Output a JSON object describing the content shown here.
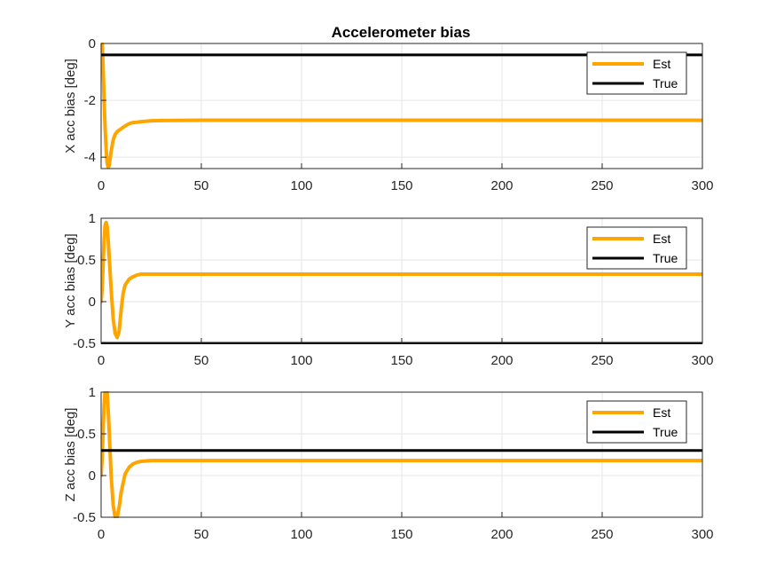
{
  "figure": {
    "title": "Accelerometer bias",
    "colors": {
      "est": "#FFA500",
      "true": "#000000",
      "grid": "#E6E6E6",
      "axis": "#262626"
    }
  },
  "chart_data": [
    {
      "type": "line",
      "title": "Accelerometer bias",
      "xlabel": "",
      "ylabel": "X acc bias [deg]",
      "xlim": [
        0,
        300
      ],
      "ylim": [
        -4.4,
        0
      ],
      "xticks": [
        0,
        50,
        100,
        150,
        200,
        250,
        300
      ],
      "yticks": [
        0,
        -2,
        -4
      ],
      "grid": true,
      "legend": {
        "placement": "top-right",
        "entries": [
          "Est",
          "True"
        ]
      },
      "series": [
        {
          "name": "Est",
          "color": "#FFA500",
          "x": [
            0,
            0.5,
            1,
            1.5,
            2,
            2.5,
            3,
            3.5,
            4,
            5,
            6,
            7,
            8,
            10,
            12,
            14,
            16,
            18,
            20,
            25,
            30,
            50,
            100,
            150,
            200,
            250,
            300
          ],
          "y": [
            -0.2,
            0.0,
            -0.8,
            -2.0,
            -3.0,
            -3.7,
            -4.2,
            -4.35,
            -4.3,
            -3.8,
            -3.4,
            -3.2,
            -3.1,
            -3.0,
            -2.9,
            -2.82,
            -2.78,
            -2.77,
            -2.75,
            -2.72,
            -2.71,
            -2.7,
            -2.7,
            -2.7,
            -2.7,
            -2.7,
            -2.7
          ]
        },
        {
          "name": "True",
          "color": "#000000",
          "x": [
            0,
            300
          ],
          "y": [
            -0.4,
            -0.4
          ]
        }
      ]
    },
    {
      "type": "line",
      "title": "",
      "xlabel": "",
      "ylabel": "Y acc bias [deg]",
      "xlim": [
        0,
        300
      ],
      "ylim": [
        -0.5,
        1
      ],
      "xticks": [
        0,
        50,
        100,
        150,
        200,
        250,
        300
      ],
      "yticks": [
        1,
        0.5,
        0,
        -0.5
      ],
      "grid": true,
      "legend": {
        "placement": "top-right",
        "entries": [
          "Est",
          "True"
        ]
      },
      "series": [
        {
          "name": "Est",
          "color": "#FFA500",
          "x": [
            0,
            0.5,
            1,
            1.5,
            2,
            2.5,
            3,
            3.5,
            4,
            5,
            6,
            7,
            8,
            9,
            10,
            11,
            12,
            14,
            16,
            18,
            20,
            25,
            30,
            50,
            100,
            150,
            200,
            250,
            300
          ],
          "y": [
            0.0,
            0.15,
            0.45,
            0.75,
            0.92,
            0.95,
            0.9,
            0.75,
            0.55,
            0.15,
            -0.2,
            -0.38,
            -0.43,
            -0.35,
            -0.1,
            0.1,
            0.2,
            0.27,
            0.3,
            0.32,
            0.33,
            0.33,
            0.33,
            0.33,
            0.33,
            0.33,
            0.33,
            0.33,
            0.33
          ]
        },
        {
          "name": "True",
          "color": "#000000",
          "x": [
            0,
            300
          ],
          "y": [
            -0.5,
            -0.5
          ]
        }
      ]
    },
    {
      "type": "line",
      "title": "",
      "xlabel": "",
      "ylabel": "Z acc bias [deg]",
      "xlim": [
        0,
        300
      ],
      "ylim": [
        -0.5,
        1
      ],
      "xticks": [
        0,
        50,
        100,
        150,
        200,
        250,
        300
      ],
      "yticks": [
        1,
        0.5,
        0,
        -0.5
      ],
      "grid": true,
      "legend": {
        "placement": "top-right",
        "entries": [
          "Est",
          "True"
        ]
      },
      "series": [
        {
          "name": "Est",
          "color": "#FFA500",
          "x": [
            0,
            0.5,
            1,
            1.5,
            2,
            2.5,
            3,
            3.5,
            4,
            5,
            6,
            7,
            8,
            9,
            10,
            12,
            14,
            16,
            18,
            20,
            25,
            30,
            50,
            100,
            150,
            200,
            250,
            300
          ],
          "y": [
            0.0,
            0.2,
            0.55,
            0.85,
            1.02,
            1.05,
            1.0,
            0.8,
            0.55,
            0.0,
            -0.35,
            -0.5,
            -0.5,
            -0.38,
            -0.2,
            0.02,
            0.1,
            0.14,
            0.16,
            0.17,
            0.18,
            0.18,
            0.18,
            0.18,
            0.18,
            0.18,
            0.18,
            0.18
          ]
        },
        {
          "name": "True",
          "color": "#000000",
          "x": [
            0,
            300
          ],
          "y": [
            0.3,
            0.3
          ]
        }
      ]
    }
  ]
}
